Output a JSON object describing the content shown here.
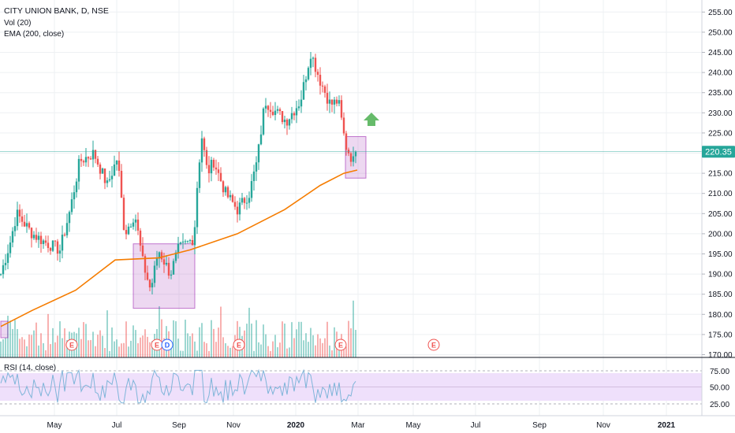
{
  "chart_data": {
    "type": "candlestick",
    "symbol_label": "CITY UNION BANK, D, NSE",
    "indicators": [
      {
        "label": "Vol (20)"
      },
      {
        "label": "EMA (200, close)",
        "color": "#f57c00"
      }
    ],
    "rsi": {
      "label": "RSI (14, close)",
      "levels": [
        25.0,
        50.0,
        75.0
      ],
      "level_labels": [
        "75.00",
        "50.00",
        "25.00"
      ],
      "band": [
        30,
        70
      ],
      "color": "#7fb5d9",
      "band_color": "#efe0fb"
    },
    "price_axis": {
      "ticks": [
        "255.00",
        "250.00",
        "245.00",
        "240.00",
        "235.00",
        "230.00",
        "225.00",
        "220.00",
        "215.00",
        "210.00",
        "205.00",
        "200.00",
        "195.00",
        "190.00",
        "185.00",
        "180.00",
        "175.00",
        "170.00"
      ],
      "ylim": [
        170,
        256
      ]
    },
    "last_price": {
      "label": "220.35",
      "value": 220.35,
      "color": "#26a69a"
    },
    "time_axis": {
      "labels": [
        "May",
        "Jul",
        "Sep",
        "Nov",
        "2020",
        "Mar",
        "May",
        "Jul",
        "Sep",
        "Nov",
        "2021"
      ]
    },
    "price_path": [
      {
        "t": 0,
        "v": 190
      },
      {
        "t": 12,
        "v": 198
      },
      {
        "t": 20,
        "v": 205
      },
      {
        "t": 40,
        "v": 200
      },
      {
        "t": 55,
        "v": 198
      },
      {
        "t": 75,
        "v": 196
      },
      {
        "t": 88,
        "v": 206
      },
      {
        "t": 100,
        "v": 218
      },
      {
        "t": 118,
        "v": 220
      },
      {
        "t": 135,
        "v": 212
      },
      {
        "t": 148,
        "v": 219
      },
      {
        "t": 157,
        "v": 200
      },
      {
        "t": 170,
        "v": 205
      },
      {
        "t": 180,
        "v": 193
      },
      {
        "t": 190,
        "v": 186
      },
      {
        "t": 200,
        "v": 196
      },
      {
        "t": 215,
        "v": 190
      },
      {
        "t": 225,
        "v": 196
      },
      {
        "t": 245,
        "v": 199
      },
      {
        "t": 250,
        "v": 215
      },
      {
        "t": 255,
        "v": 224
      },
      {
        "t": 262,
        "v": 215
      },
      {
        "t": 270,
        "v": 218
      },
      {
        "t": 285,
        "v": 210
      },
      {
        "t": 300,
        "v": 206
      },
      {
        "t": 315,
        "v": 210
      },
      {
        "t": 325,
        "v": 218
      },
      {
        "t": 335,
        "v": 233
      },
      {
        "t": 350,
        "v": 230
      },
      {
        "t": 362,
        "v": 228
      },
      {
        "t": 380,
        "v": 233
      },
      {
        "t": 393,
        "v": 245
      },
      {
        "t": 405,
        "v": 238
      },
      {
        "t": 418,
        "v": 232
      },
      {
        "t": 428,
        "v": 233
      },
      {
        "t": 437,
        "v": 222
      },
      {
        "t": 447,
        "v": 218
      },
      {
        "t": 452,
        "v": 220.35
      }
    ],
    "ema_path": [
      {
        "t": 0,
        "v": 177
      },
      {
        "t": 40,
        "v": 181
      },
      {
        "t": 95,
        "v": 186
      },
      {
        "t": 145,
        "v": 193.5
      },
      {
        "t": 200,
        "v": 194
      },
      {
        "t": 240,
        "v": 196
      },
      {
        "t": 300,
        "v": 200
      },
      {
        "t": 360,
        "v": 206
      },
      {
        "t": 405,
        "v": 212
      },
      {
        "t": 435,
        "v": 215
      },
      {
        "t": 452,
        "v": 215.8
      }
    ],
    "event_markers": [
      {
        "label": "E",
        "kind": "earnings",
        "t": 90
      },
      {
        "label": "E",
        "kind": "earnings",
        "t": 198
      },
      {
        "label": "D",
        "kind": "dividend",
        "t": 211
      },
      {
        "label": "E",
        "kind": "earnings",
        "t": 302
      },
      {
        "label": "E",
        "kind": "earnings",
        "t": 431
      },
      {
        "label": "E",
        "kind": "earnings",
        "t": 549
      }
    ],
    "annotations": [
      {
        "kind": "box",
        "t0": 168,
        "t1": 246,
        "v0": 181.5,
        "v1": 197.5,
        "color": "#9c27b0"
      },
      {
        "kind": "box",
        "t0": 437,
        "t1": 463,
        "v0": 213.8,
        "v1": 224.1,
        "color": "#9c27b0"
      },
      {
        "kind": "box",
        "t0": 0,
        "t1": 9,
        "v0": 174.2,
        "v1": 178.3,
        "color": "#9c27b0"
      },
      {
        "kind": "arrow",
        "direction": "up",
        "t": 470,
        "v": 228.5,
        "color": "#66bb6a"
      }
    ],
    "colors": {
      "up": "#26a69a",
      "down": "#ef5350",
      "grid": "#eef0f3",
      "axis_text": "#131722"
    }
  }
}
